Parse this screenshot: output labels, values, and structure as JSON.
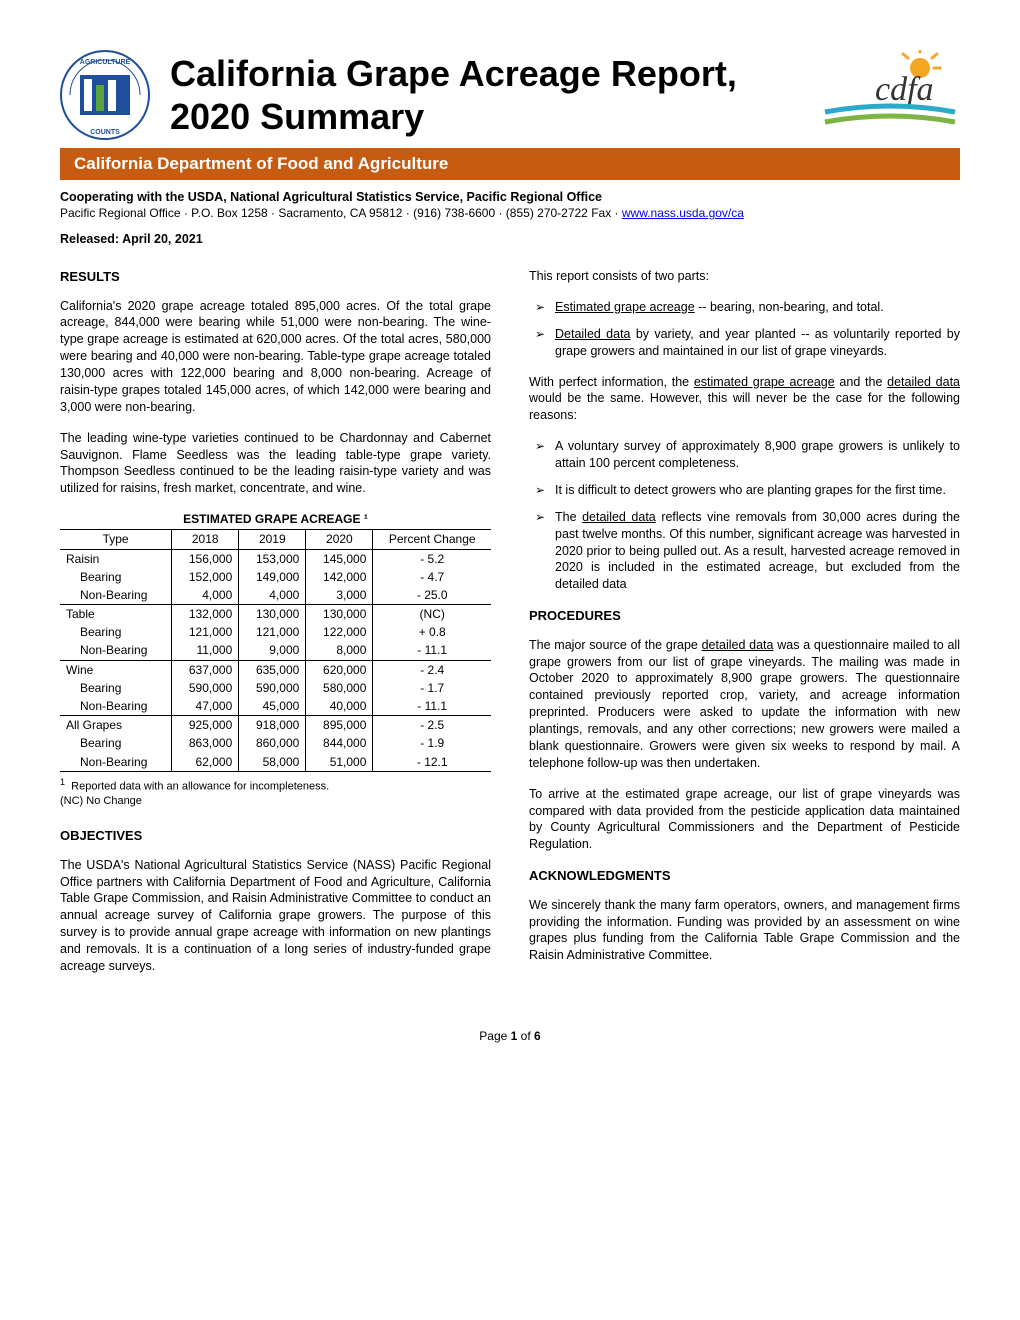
{
  "title": "California Grape Acreage Report, 2020 Summary",
  "dept_bar": "California Department of Food and Agriculture",
  "coop_line": "Cooperating with the USDA, National Agricultural Statistics Service, Pacific Regional Office",
  "address_prefix": "Pacific Regional Office · P.O. Box 1258 · Sacramento, CA 95812 · (916) 738-6600 · (855) 270-2722 Fax · ",
  "address_link": "www.nass.usda.gov/ca",
  "released": "Released:  April 20, 2021",
  "colors": {
    "dept_bar_bg": "#c75b12",
    "dept_bar_text": "#ffffff",
    "link": "#0000ee",
    "logo_blue": "#1f4e9c",
    "logo_green": "#5aa33a",
    "cdfa_orange": "#f5a623",
    "cdfa_teal": "#2aa9c9",
    "cdfa_green": "#7cb342"
  },
  "left": {
    "results_heading": "RESULTS",
    "p1": "California's 2020 grape acreage totaled 895,000 acres. Of the total grape acreage, 844,000 were bearing while 51,000 were non-bearing. The wine-type grape acreage is estimated at 620,000 acres. Of the total acres, 580,000 were bearing and 40,000 were non-bearing. Table-type grape acreage totaled 130,000 acres with 122,000 bearing and 8,000 non-bearing. Acreage of raisin-type grapes totaled 145,000 acres, of which 142,000 were bearing and 3,000 were non-bearing.",
    "p2": "The leading wine-type varieties continued to be Chardonnay and Cabernet Sauvignon. Flame Seedless was the leading table-type grape variety. Thompson Seedless continued to be the leading raisin-type variety and was utilized for raisins, fresh market, concentrate, and wine.",
    "table_title": "ESTIMATED GRAPE ACREAGE ¹",
    "objectives_heading": "OBJECTIVES",
    "p3": "The USDA's National Agricultural Statistics Service (NASS) Pacific Regional Office partners with California Department of Food and Agriculture, California Table Grape Commission, and Raisin Administrative Committee to conduct an annual acreage survey of California grape growers. The purpose of this survey is to provide annual grape acreage with information on new plantings and removals. It is a continuation of a long series of industry-funded grape acreage surveys.",
    "footnote1": "Reported data with an allowance for incompleteness.",
    "footnote2": "(NC)  No Change"
  },
  "table": {
    "columns": [
      "Type",
      "2018",
      "2019",
      "2020",
      "Percent Change"
    ],
    "rows": [
      {
        "type": "Raisin",
        "v": [
          "156,000",
          "153,000",
          "145,000",
          "- 5.2"
        ],
        "end": false,
        "sub": false
      },
      {
        "type": "Bearing",
        "v": [
          "152,000",
          "149,000",
          "142,000",
          "- 4.7"
        ],
        "end": false,
        "sub": true
      },
      {
        "type": "Non-Bearing",
        "v": [
          "4,000",
          "4,000",
          "3,000",
          "- 25.0"
        ],
        "end": true,
        "sub": true
      },
      {
        "type": "Table",
        "v": [
          "132,000",
          "130,000",
          "130,000",
          "(NC)"
        ],
        "end": false,
        "sub": false
      },
      {
        "type": "Bearing",
        "v": [
          "121,000",
          "121,000",
          "122,000",
          "+ 0.8"
        ],
        "end": false,
        "sub": true
      },
      {
        "type": "Non-Bearing",
        "v": [
          "11,000",
          "9,000",
          "8,000",
          "- 11.1"
        ],
        "end": true,
        "sub": true
      },
      {
        "type": "Wine",
        "v": [
          "637,000",
          "635,000",
          "620,000",
          "- 2.4"
        ],
        "end": false,
        "sub": false
      },
      {
        "type": "Bearing",
        "v": [
          "590,000",
          "590,000",
          "580,000",
          "- 1.7"
        ],
        "end": false,
        "sub": true
      },
      {
        "type": "Non-Bearing",
        "v": [
          "47,000",
          "45,000",
          "40,000",
          "- 11.1"
        ],
        "end": true,
        "sub": true
      },
      {
        "type": "All Grapes",
        "v": [
          "925,000",
          "918,000",
          "895,000",
          "- 2.5"
        ],
        "end": false,
        "sub": false
      },
      {
        "type": "Bearing",
        "v": [
          "863,000",
          "860,000",
          "844,000",
          "- 1.9"
        ],
        "end": false,
        "sub": true
      },
      {
        "type": "Non-Bearing",
        "v": [
          "62,000",
          "58,000",
          "51,000",
          "- 12.1"
        ],
        "end": true,
        "sub": true
      }
    ]
  },
  "right": {
    "intro": "This report consists of two parts:",
    "bullets1": [
      {
        "pre": "",
        "u": "Estimated grape acreage",
        "post": " -- bearing, non-bearing, and total."
      },
      {
        "pre": "",
        "u": "Detailed data",
        "post": " by variety, and year planted -- as voluntarily reported by grape growers and maintained in our list of grape vineyards."
      }
    ],
    "mid_pre": "With perfect information, the ",
    "mid_u1": "estimated grape acreage",
    "mid_mid": " and the ",
    "mid_u2": "detailed data",
    "mid_post": " would be the same. However, this will never be the case for the following reasons:",
    "bullets2": [
      {
        "text": "A voluntary survey of approximately 8,900 grape growers is unlikely to attain 100 percent completeness."
      },
      {
        "text": "It is difficult to detect growers who are planting grapes for the first time."
      },
      {
        "pre": "The ",
        "u": "detailed data",
        "post": " reflects vine removals from 30,000 acres during the past twelve months. Of this number, significant acreage was harvested in 2020 prior to being pulled out. As a result, harvested acreage removed in 2020 is included in the estimated acreage, but excluded from the detailed data"
      }
    ],
    "procedures_heading": "PROCEDURES",
    "proc_p1_pre": "The major source of the grape ",
    "proc_p1_u": "detailed data",
    "proc_p1_post": " was a questionnaire mailed to all grape growers from our list of grape vineyards. The mailing was made in October 2020 to approximately 8,900 grape growers. The questionnaire contained previously reported crop, variety, and acreage information preprinted. Producers were asked to update the information with new plantings, removals, and any other corrections; new growers were mailed a blank questionnaire. Growers were given six weeks to respond by mail. A telephone follow-up was then undertaken.",
    "proc_p2": "To arrive at the estimated grape acreage, our list of grape vineyards was compared with data provided from the pesticide application data maintained by County Agricultural Commissioners and the Department of Pesticide Regulation.",
    "ack_heading": "ACKNOWLEDGMENTS",
    "ack_p": "We sincerely thank the many farm operators, owners, and management firms providing the information. Funding was provided by an assessment on wine grapes plus funding from the California Table Grape Commission and the Raisin Administrative Committee."
  },
  "footer_pre": "Page ",
  "footer_bold": "1",
  "footer_post": " of ",
  "footer_total": "6"
}
